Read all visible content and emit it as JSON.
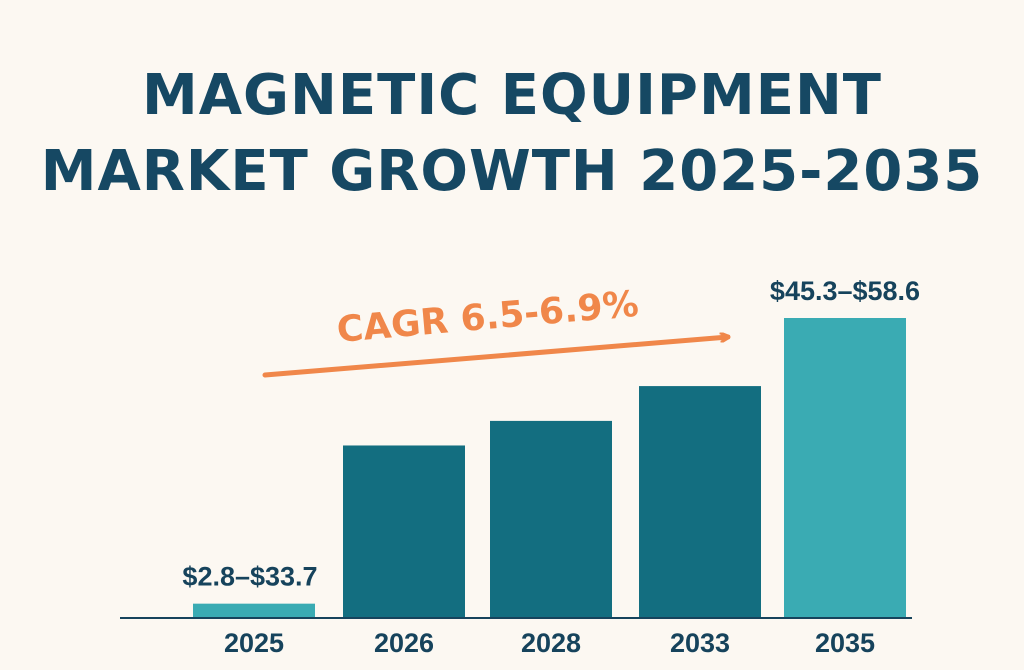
{
  "chart_data": {
    "type": "bar",
    "title_lines": [
      "MAGNETIC EQUIPMENT",
      "MARKET GROWTH 2025-2035"
    ],
    "categories": [
      "2025",
      "2026",
      "2028",
      "2033",
      "2035"
    ],
    "values": [
      2.8,
      33.7,
      38.5,
      45.3,
      58.6
    ],
    "ylim": [
      0,
      65
    ],
    "data_labels": [
      "$2.8–$33.7",
      "",
      "",
      "",
      "$45.3–$58.6"
    ],
    "bar_colors": [
      "#3aabb3",
      "#136e80",
      "#136e80",
      "#136e80",
      "#3aabb3"
    ],
    "annotation": {
      "text": "CAGR 6.5-6.9%",
      "color": "#f0874a"
    },
    "axis_color": "#16435c",
    "grid": false,
    "legend": "none"
  }
}
